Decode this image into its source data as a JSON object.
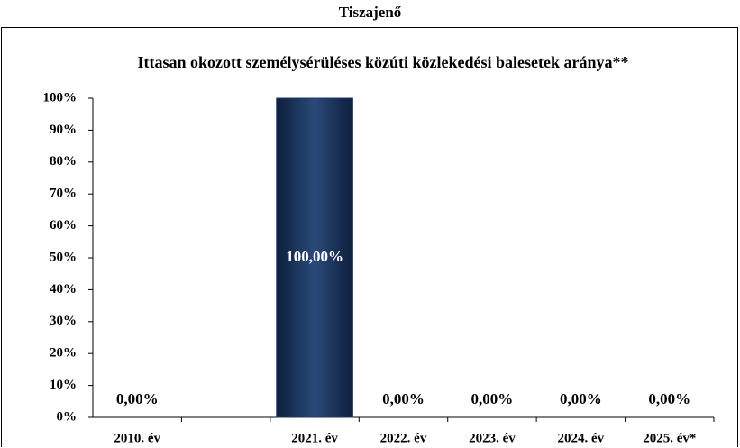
{
  "header": {
    "title": "Tiszajenő"
  },
  "chart_data": {
    "type": "bar",
    "title": "Ittasan okozott személysérüléses közúti közlekedési balesetek aránya**",
    "categories": [
      "2010. év",
      null,
      "2021. év",
      "2022. év",
      "2023. év",
      "2024. év",
      "2025. év*"
    ],
    "values": [
      0,
      null,
      100,
      0,
      0,
      0,
      0
    ],
    "value_labels": [
      "0,00%",
      null,
      "100,00%",
      "0,00%",
      "0,00%",
      "0,00%",
      "0,00%"
    ],
    "color": "#1f3864",
    "ylim": [
      0,
      100
    ],
    "yticks": [
      {
        "value": 0,
        "label": "0%"
      },
      {
        "value": 10,
        "label": "10%"
      },
      {
        "value": 20,
        "label": "20%"
      },
      {
        "value": 30,
        "label": "30%"
      },
      {
        "value": 40,
        "label": "40%"
      },
      {
        "value": 50,
        "label": "50%"
      },
      {
        "value": 60,
        "label": "60%"
      },
      {
        "value": 70,
        "label": "70%"
      },
      {
        "value": 80,
        "label": "80%"
      },
      {
        "value": 90,
        "label": "90%"
      },
      {
        "value": 100,
        "label": "100%"
      }
    ],
    "grid": false
  }
}
